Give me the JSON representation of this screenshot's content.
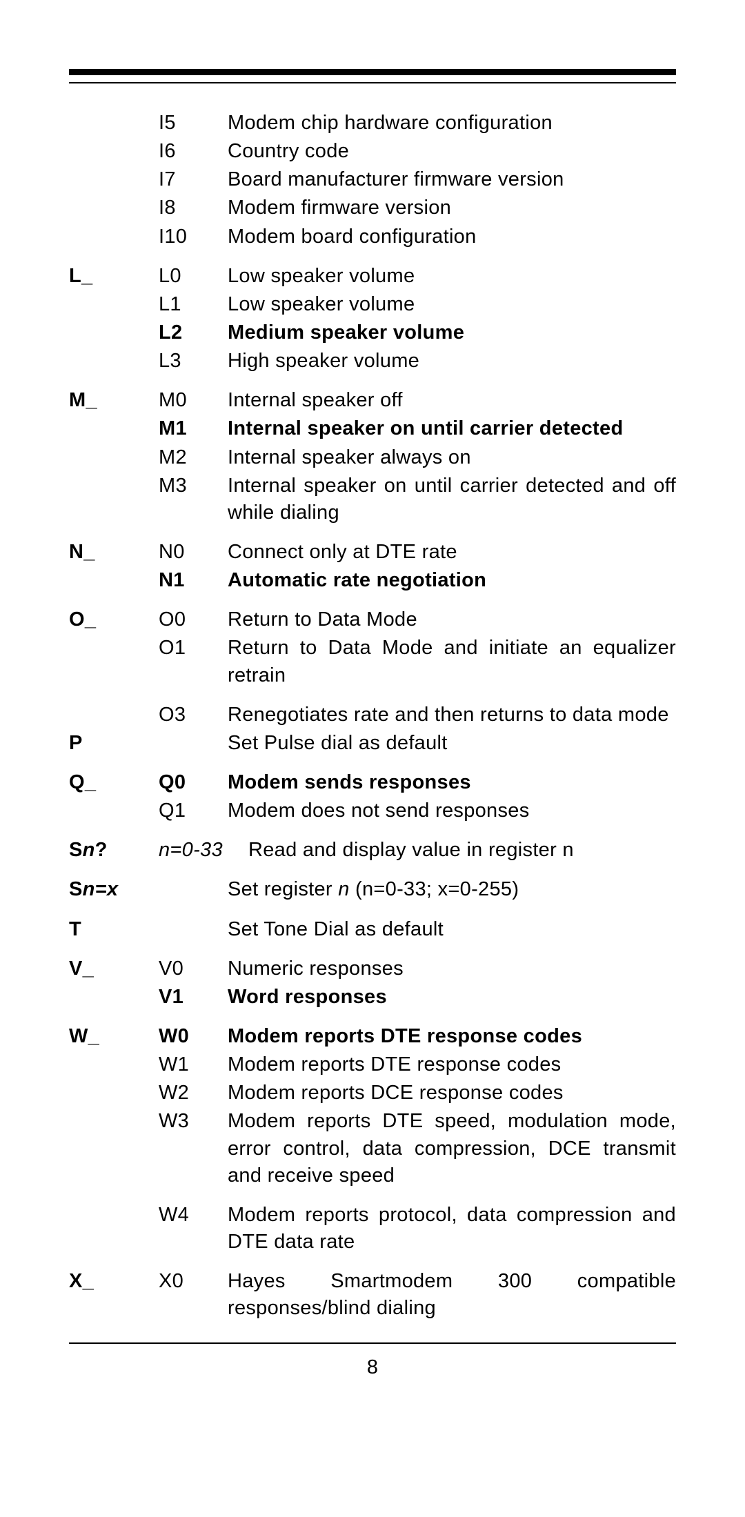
{
  "page_number": "8",
  "rows": [
    {
      "c1": "",
      "c2": "I5",
      "c3": "Modem chip hardware configuration",
      "bold": false,
      "gap": false
    },
    {
      "c1": "",
      "c2": "I6",
      "c3": "Country code",
      "bold": false,
      "gap": false
    },
    {
      "c1": "",
      "c2": "I7",
      "c3": "Board manufacturer firmware version",
      "bold": false,
      "gap": false
    },
    {
      "c1": "",
      "c2": "I8",
      "c3": "Modem firmware version",
      "bold": false,
      "gap": false
    },
    {
      "c1": "",
      "c2": "I10",
      "c3": "Modem board configuration",
      "bold": false,
      "gap": false
    },
    {
      "c1": "L_",
      "c2": "L0",
      "c3": "Low speaker volume",
      "bold": false,
      "gap": true
    },
    {
      "c1": "",
      "c2": "L1",
      "c3": "Low speaker volume",
      "bold": false,
      "gap": false
    },
    {
      "c1": "",
      "c2": "L2",
      "c3": "Medium speaker volume",
      "bold": true,
      "gap": false
    },
    {
      "c1": "",
      "c2": "L3",
      "c3": "High speaker volume",
      "bold": false,
      "gap": false
    },
    {
      "c1": "M_",
      "c2": "M0",
      "c3": "Internal speaker off",
      "bold": false,
      "gap": true
    },
    {
      "c1": "",
      "c2": "M1",
      "c3": "Internal speaker on until carrier detected",
      "bold": true,
      "gap": false
    },
    {
      "c1": "",
      "c2": "M2",
      "c3": "Internal speaker always on",
      "bold": false,
      "gap": false
    },
    {
      "c1": "",
      "c2": "M3",
      "c3": "Internal speaker on until carrier detected and off while dialing",
      "bold": false,
      "gap": false
    },
    {
      "c1": "N_",
      "c2": "N0",
      "c3": "Connect only at DTE rate",
      "bold": false,
      "gap": true
    },
    {
      "c1": "",
      "c2": "N1",
      "c3": "Automatic rate negotiation",
      "bold": true,
      "gap": false
    },
    {
      "c1": "O_",
      "c2": "O0",
      "c3": "Return to Data Mode",
      "bold": false,
      "gap": true
    },
    {
      "c1": "",
      "c2": "O1",
      "c3": "Return to Data Mode and initiate an equalizer retrain",
      "bold": false,
      "gap": false
    },
    {
      "c1": "",
      "c2": "O3",
      "c3": "Renegotiates rate and then returns to data mode",
      "bold": false,
      "gap": true
    },
    {
      "c1": "P",
      "c2": "",
      "c3": "Set Pulse dial as default",
      "bold": false,
      "gap": false
    },
    {
      "c1": "Q_",
      "c2": "Q0",
      "c3": "Modem sends responses",
      "bold": true,
      "gap": true,
      "c1not": true
    },
    {
      "c1": "",
      "c2": "Q1",
      "c3": "Modem does not send responses",
      "bold": false,
      "gap": false
    },
    {
      "c1_html": "S<span class=\"italic\">n</span>?",
      "c2_html": "<span class=\"italic\">n=0-33</span>",
      "c3": "Read and display value in register n",
      "bold": false,
      "gap": true,
      "widec2": true
    },
    {
      "c1_html": "S<span class=\"italic\">n=x</span>",
      "c2": "",
      "c3_html": "Set register <span class=\"italic\">n</span> (n=0-33; x=0-255)",
      "bold": false,
      "gap": true
    },
    {
      "c1": "T",
      "c2": "",
      "c3": "Set Tone Dial as default",
      "bold": false,
      "gap": true
    },
    {
      "c1": "V_",
      "c2": "V0",
      "c3": "Numeric responses",
      "bold": false,
      "gap": true
    },
    {
      "c1": "",
      "c2": "V1",
      "c3": "Word responses",
      "bold": true,
      "gap": false
    },
    {
      "c1": "W_",
      "c2": "W0",
      "c3": "Modem reports DTE response codes",
      "bold": true,
      "gap": true,
      "c1not": true
    },
    {
      "c1": "",
      "c2": "W1",
      "c3": "Modem reports DTE response codes",
      "bold": false,
      "gap": false
    },
    {
      "c1": "",
      "c2": "W2",
      "c3": "Modem reports DCE response codes",
      "bold": false,
      "gap": false
    },
    {
      "c1": "",
      "c2": "W3",
      "c3": "Modem reports DTE speed, modulation mode, error control, data compression, DCE transmit and receive speed",
      "bold": false,
      "gap": false
    },
    {
      "c1": "",
      "c2": "W4",
      "c3": "Modem reports protocol, data compression and DTE data rate",
      "bold": false,
      "gap": true
    },
    {
      "c1": "X_",
      "c2": "X0",
      "c3": "Hayes Smartmodem 300 compatible responses/blind dialing",
      "bold": false,
      "gap": true
    }
  ]
}
